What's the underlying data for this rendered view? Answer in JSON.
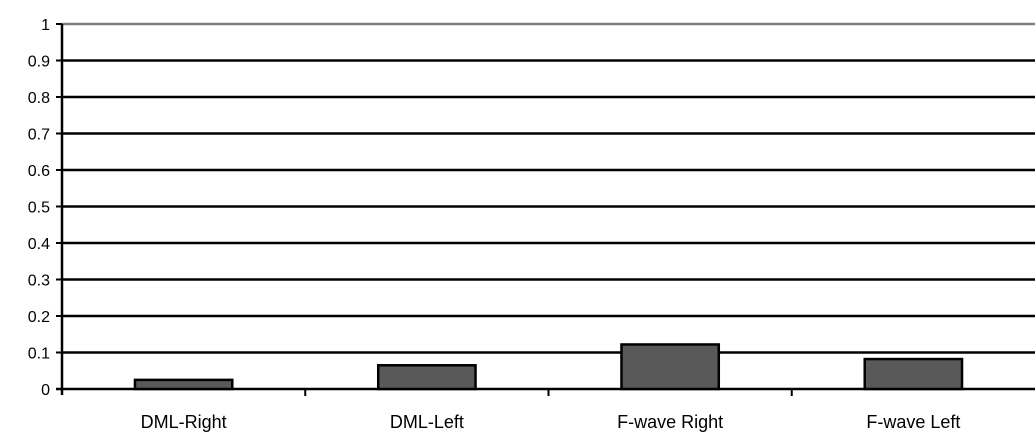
{
  "chart_data": {
    "type": "bar",
    "categories": [
      "DML-Right",
      "DML-Left",
      "F-wave Right",
      "F-wave Left"
    ],
    "values": [
      0.025,
      0.065,
      0.122,
      0.082
    ],
    "ylim": [
      0,
      1
    ],
    "yticks": [
      "0",
      "0.1",
      "0.2",
      "0.3",
      "0.4",
      "0.5",
      "0.6",
      "0.7",
      "0.8",
      "0.9",
      "1"
    ],
    "grid": true,
    "legend": "none",
    "title": "",
    "xlabel": "",
    "ylabel": "",
    "colors": {
      "bar_fill": "#595959",
      "bar_stroke": "#000000",
      "grid": "#000000",
      "top_line": "#808080"
    }
  }
}
